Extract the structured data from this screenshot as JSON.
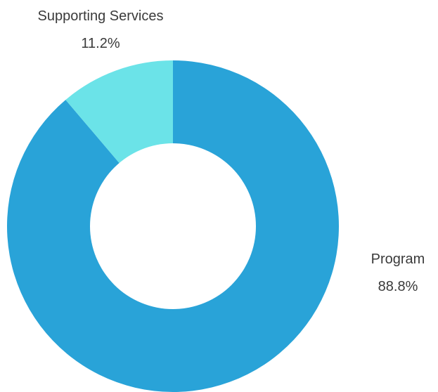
{
  "chart_data": {
    "type": "pie",
    "variant": "donut",
    "title": "",
    "slices": [
      {
        "label": "Program",
        "value": 88.8,
        "value_label": "88.8%",
        "color": "#29A3D8"
      },
      {
        "label": "Supporting Services",
        "value": 11.2,
        "value_label": "11.2%",
        "color": "#6BE3E8"
      }
    ],
    "legend": "none",
    "start": "top",
    "direction": "clockwise"
  }
}
